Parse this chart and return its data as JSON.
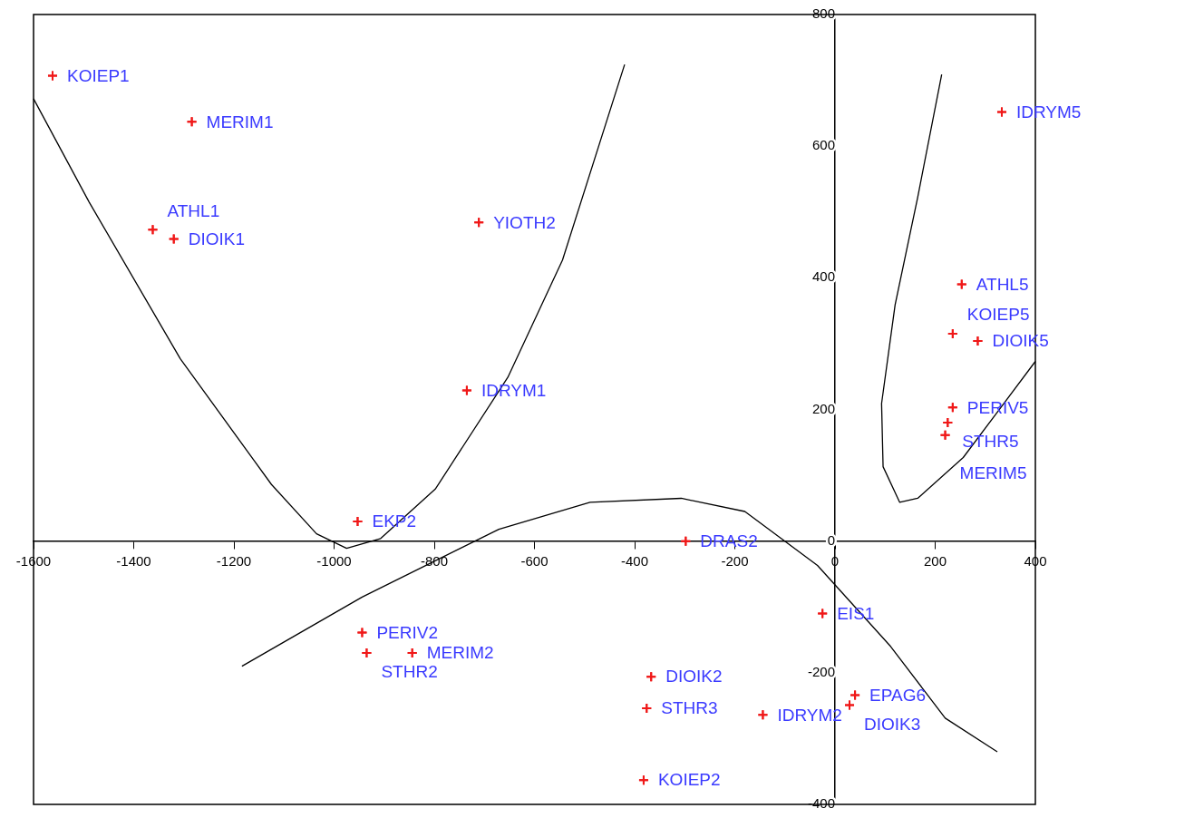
{
  "chart_data": {
    "type": "scatter",
    "xlim": [
      -1600,
      400
    ],
    "ylim": [
      -400,
      800
    ],
    "xticks": [
      -1600,
      -1400,
      -1200,
      -1000,
      -800,
      -600,
      -400,
      -200,
      0,
      200,
      400
    ],
    "yticks": [
      -400,
      -200,
      0,
      200,
      400,
      600,
      800
    ],
    "grid": false,
    "legend": false,
    "series": [
      {
        "color": "#f01818",
        "marker": "cross",
        "x": [
          -1562,
          -1284,
          -1362,
          -1320,
          -711,
          -735,
          -953,
          -298,
          -944,
          -935,
          -844,
          -367,
          -376,
          -144,
          -382,
          -25,
          40,
          29,
          333,
          253,
          235,
          285,
          235,
          225,
          220
        ],
        "values": [
          707,
          637,
          473,
          459,
          484,
          229,
          30,
          0,
          -139,
          -170,
          -170,
          -206,
          -254,
          -264,
          -363,
          -110,
          -234,
          -249,
          652,
          390,
          315,
          304,
          203,
          180,
          161
        ],
        "value_labels": [
          "KOIEP1",
          "MERIM1",
          "ATHL1",
          "DIOIK1",
          "YIOTH2",
          "IDRYM1",
          "EKP2",
          "DRAS2",
          "PERIV2",
          "STHR2",
          "MERIM2",
          "DIOIK2",
          "STHR3",
          "IDRYM2",
          "KOIEP2",
          "EIS1",
          "EPAG6",
          "DIOIK3",
          "IDRYM5",
          "ATHL5",
          "KOIEP5",
          "DIOIK5",
          "PERIV5",
          "STHR5",
          "MERIM5"
        ]
      },
      {
        "type": "line",
        "color": "#000000",
        "marker": "none",
        "x": [
          -1600,
          -1489,
          -1307,
          -1125,
          -1035,
          -975,
          -907,
          -798,
          -653,
          -544,
          -420
        ],
        "values": [
          672,
          515,
          277,
          86,
          11,
          -11,
          4,
          79,
          249,
          427,
          724
        ]
      },
      {
        "type": "line",
        "color": "#000000",
        "marker": "none",
        "x": [
          -1184,
          -944,
          -671,
          -489,
          -307,
          -180,
          -35,
          111,
          220,
          324
        ],
        "values": [
          -190,
          -85,
          18,
          59,
          65,
          45,
          -37,
          -160,
          -269,
          -320
        ]
      },
      {
        "type": "line",
        "color": "#000000",
        "marker": "none",
        "x": [
          213,
          165,
          120,
          93,
          96,
          129,
          165,
          256,
          329,
          400
        ],
        "values": [
          709,
          522,
          359,
          209,
          113,
          59,
          65,
          127,
          201,
          273
        ]
      }
    ]
  }
}
